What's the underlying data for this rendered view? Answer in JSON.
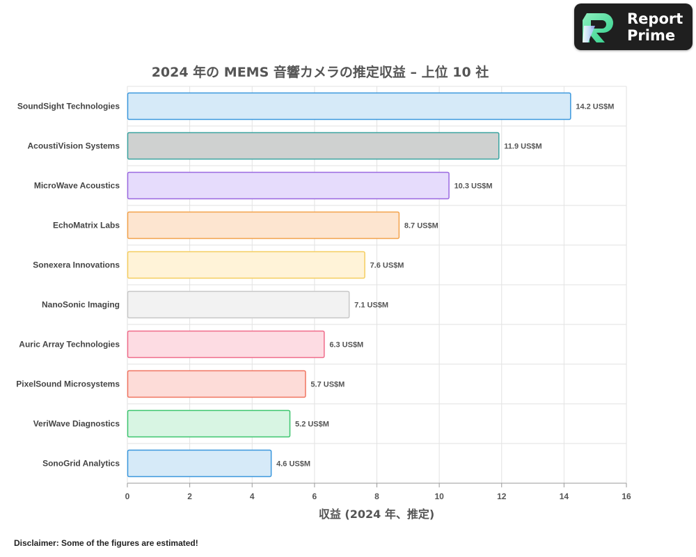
{
  "brand": {
    "line1": "Report",
    "line2": "Prime",
    "icon": "report-prime-logo-icon"
  },
  "disclaimer": "Disclaimer: Some of the figures are estimated!",
  "chart_data": {
    "type": "bar",
    "orientation": "horizontal",
    "title": "2024 年の MEMS 音響カメラの推定収益 – 上位 10 社",
    "xlabel": "収益 (2024 年、推定)",
    "ylabel": "",
    "xlim": [
      0,
      16
    ],
    "xticks": [
      0,
      2,
      4,
      6,
      8,
      10,
      12,
      14,
      16
    ],
    "grid": true,
    "categories": [
      "SoundSight Technologies",
      "AcoustiVision Systems",
      "MicroWave Acoustics",
      "EchoMatrix Labs",
      "Sonexera Innovations",
      "NanoSonic Imaging",
      "Auric Array Technologies",
      "PixelSound Microsystems",
      "VeriWave Diagnostics",
      "SonoGrid Analytics"
    ],
    "values": [
      14.2,
      11.9,
      10.3,
      8.7,
      7.6,
      7.1,
      6.3,
      5.7,
      5.2,
      4.6
    ],
    "value_labels": [
      "14.2 US$M",
      "11.9 US$M",
      "10.3 US$M",
      "8.7 US$M",
      "7.6 US$M",
      "7.1 US$M",
      "6.3 US$M",
      "5.7 US$M",
      "5.2 US$M",
      "4.6 US$M"
    ],
    "colors": [
      {
        "fill": "#d6eaf8",
        "stroke": "#3a97dd"
      },
      {
        "fill": "#cfd1d0",
        "stroke": "#3aa3a0"
      },
      {
        "fill": "#e6dcfc",
        "stroke": "#9a68e0"
      },
      {
        "fill": "#fde5d0",
        "stroke": "#f3a24a"
      },
      {
        "fill": "#fff3d8",
        "stroke": "#f5cd5e"
      },
      {
        "fill": "#f2f2f2",
        "stroke": "#c7c7c7"
      },
      {
        "fill": "#fddce3",
        "stroke": "#ef6b8a"
      },
      {
        "fill": "#fddcd8",
        "stroke": "#f0735f"
      },
      {
        "fill": "#d8f5e3",
        "stroke": "#3cc56e"
      },
      {
        "fill": "#d6eaf8",
        "stroke": "#3a97dd"
      }
    ]
  }
}
